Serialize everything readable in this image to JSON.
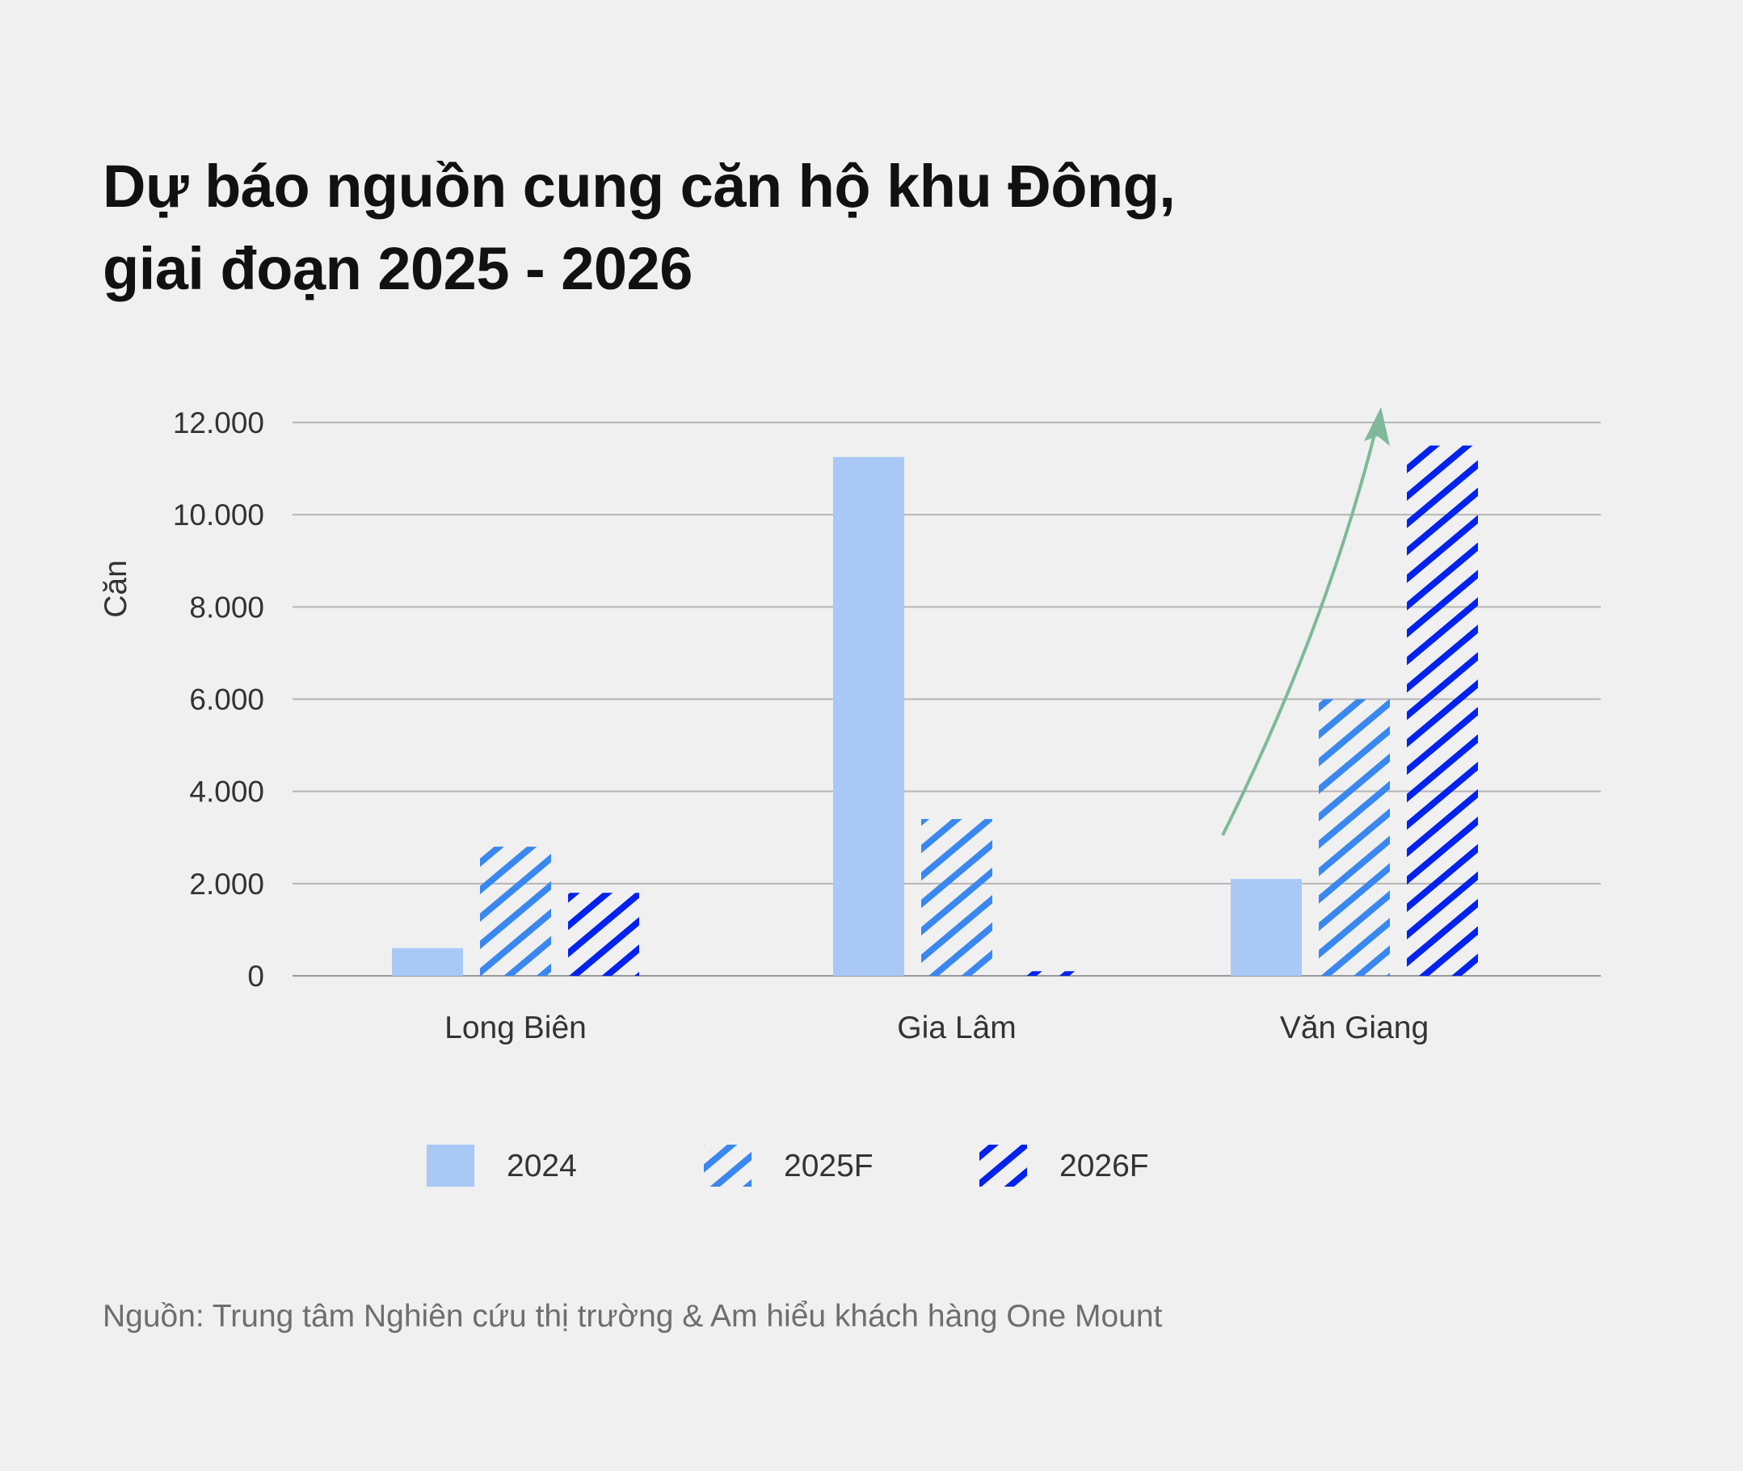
{
  "title_lines": [
    "Dự báo nguồn cung căn hộ khu Đông,",
    "giai đoạn 2025 - 2026"
  ],
  "source": "Nguồn: Trung tâm Nghiên cứu thị trường & Am hiểu khách hàng One Mount",
  "chart_data": {
    "type": "bar",
    "title": "Dự báo nguồn cung căn hộ khu Đông, giai đoạn 2025 - 2026",
    "xlabel": "",
    "ylabel": "Căn",
    "ylim": [
      0,
      12000
    ],
    "yticks": [
      0,
      2000,
      4000,
      6000,
      8000,
      10000,
      12000
    ],
    "ytick_labels": [
      "0",
      "2.000",
      "4.000",
      "6.000",
      "8.000",
      "10.000",
      "12.000"
    ],
    "grid": true,
    "legend_position": "bottom",
    "categories": [
      "Long Biên",
      "Gia Lâm",
      "Văn Giang"
    ],
    "series": [
      {
        "name": "2024",
        "values": [
          600,
          11250,
          2100
        ],
        "color": "#a9c8f6",
        "fill": "solid"
      },
      {
        "name": "2025F",
        "values": [
          2800,
          3400,
          6000
        ],
        "color": "#3a87f0",
        "fill": "hatched"
      },
      {
        "name": "2026F",
        "values": [
          1800,
          100,
          11500
        ],
        "color": "#0022ee",
        "fill": "hatched"
      }
    ],
    "annotation": {
      "type": "arrow",
      "color": "#7fb89a",
      "target_category": "Văn Giang"
    }
  }
}
